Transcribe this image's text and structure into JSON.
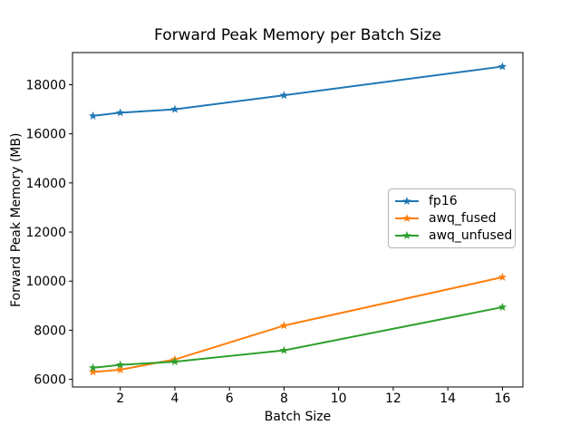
{
  "chart_data": {
    "type": "line",
    "title": "Forward Peak Memory per Batch Size",
    "xlabel": "Batch Size",
    "ylabel": "Forward Peak Memory (MB)",
    "x": [
      1,
      2,
      4,
      8,
      16
    ],
    "series": [
      {
        "name": "fp16",
        "color": "#1f77b4",
        "marker": "star",
        "values": [
          16730,
          16860,
          17000,
          17570,
          18740
        ]
      },
      {
        "name": "awq_fused",
        "color": "#ff7f0e",
        "marker": "star",
        "values": [
          6300,
          6390,
          6810,
          8190,
          10160
        ]
      },
      {
        "name": "awq_unfused",
        "color": "#2ca02c",
        "marker": "star",
        "values": [
          6470,
          6590,
          6720,
          7180,
          8940
        ]
      }
    ],
    "xlim": [
      0.25,
      16.75
    ],
    "ylim": [
      5690,
      19310
    ],
    "xticks": [
      2,
      4,
      6,
      8,
      10,
      12,
      14,
      16
    ],
    "yticks": [
      6000,
      8000,
      10000,
      12000,
      14000,
      16000,
      18000
    ],
    "grid": false,
    "legend_position": "center-right"
  },
  "colors": {
    "background": "#ffffff",
    "axis": "#000000",
    "text": "#000000",
    "legend_border": "#b3b3b3"
  }
}
